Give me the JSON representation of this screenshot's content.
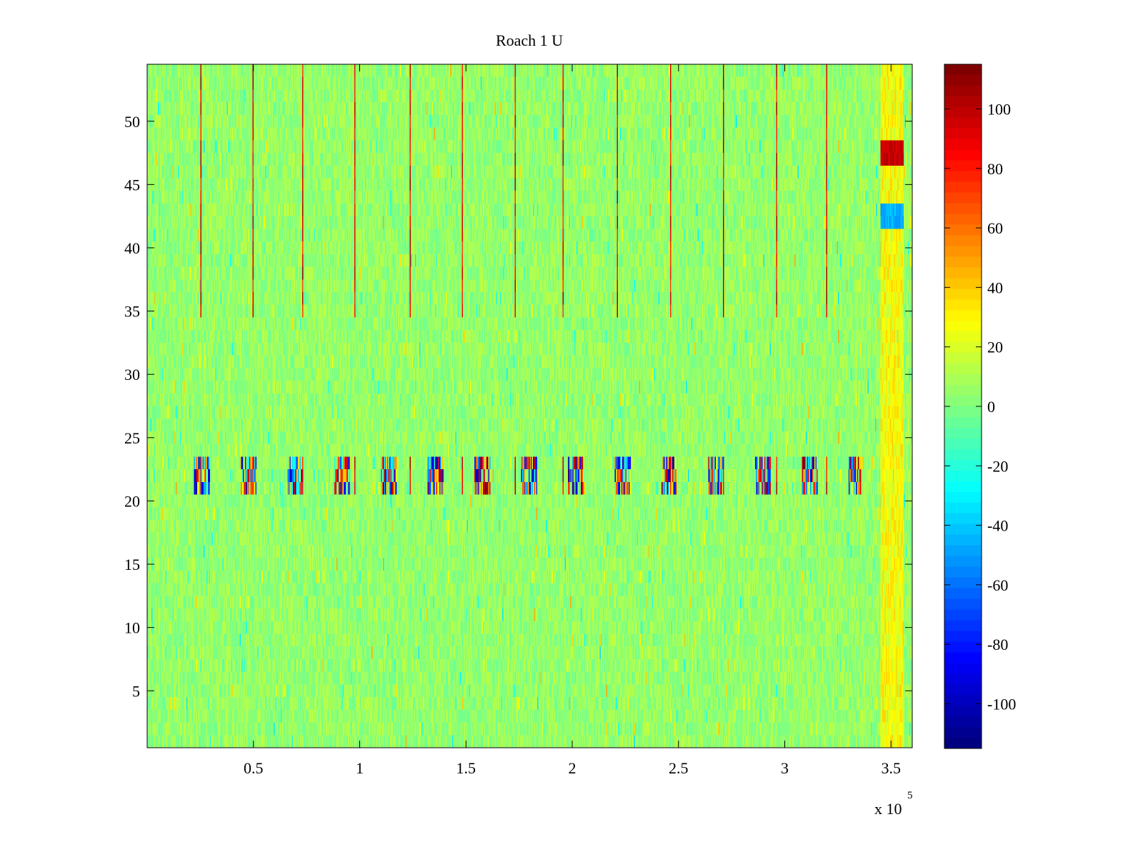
{
  "chart_data": {
    "type": "heatmap",
    "title": "Roach 1 U",
    "xlabel": "",
    "ylabel": "",
    "xlim": [
      0,
      360000
    ],
    "ylim": [
      0.5,
      54.5
    ],
    "x_tick_values": [
      50000,
      100000,
      150000,
      200000,
      250000,
      300000,
      350000
    ],
    "x_tick_labels": [
      "0.5",
      "1",
      "1.5",
      "2",
      "2.5",
      "3",
      "3.5"
    ],
    "x_exponent_label": {
      "base": "x 10",
      "power": "5"
    },
    "y_tick_values": [
      5,
      10,
      15,
      20,
      25,
      30,
      35,
      40,
      45,
      50
    ],
    "y_tick_labels": [
      "5",
      "10",
      "15",
      "20",
      "25",
      "30",
      "35",
      "40",
      "45",
      "50"
    ],
    "colorbar": {
      "colormap": "jet",
      "clim": [
        -115,
        115
      ],
      "tick_values": [
        100,
        80,
        60,
        40,
        20,
        0,
        -20,
        -40,
        -60,
        -80,
        -100
      ],
      "tick_labels": [
        "100",
        "80",
        "60",
        "40",
        "20",
        "0",
        "-20",
        "-40",
        "-60",
        "-80",
        "-100"
      ]
    },
    "rows": 54,
    "features": {
      "background_level": [
        -5,
        15
      ],
      "spike_band_rows": [
        21,
        23
      ],
      "artifact_region_x": [
        345000,
        356000
      ],
      "artifact_hot_rows": [
        47,
        48
      ],
      "artifact_cold_rows": [
        42,
        43
      ]
    },
    "grid": false,
    "legend": "none"
  }
}
